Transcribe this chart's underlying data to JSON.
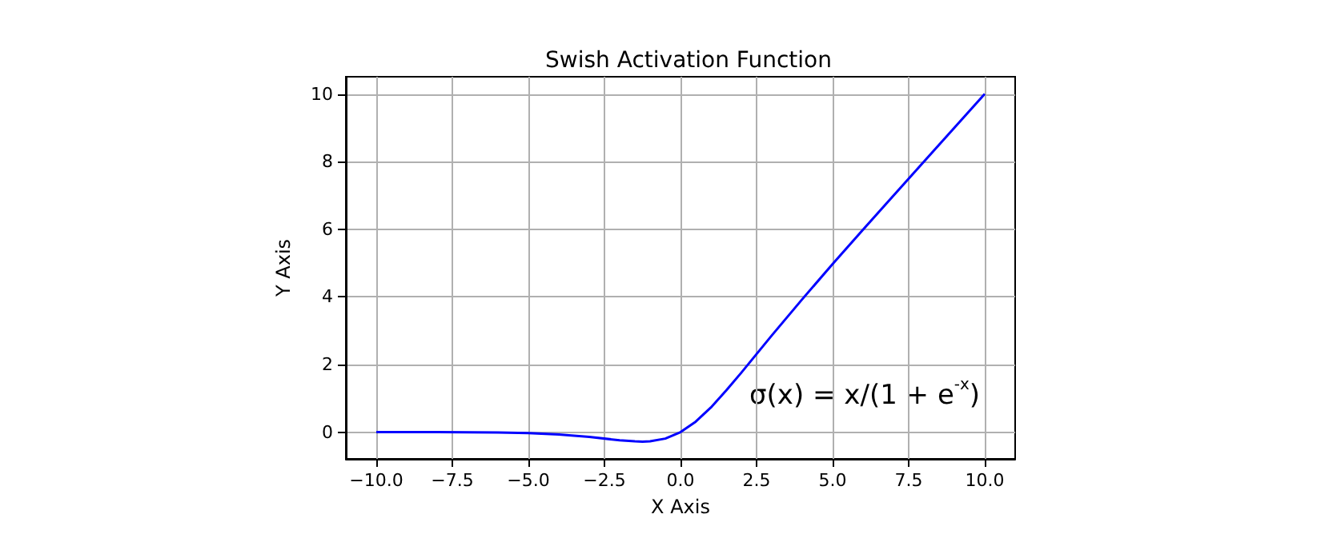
{
  "chart_data": {
    "type": "line",
    "title": "Swish Activation Function",
    "xlabel": "X Axis",
    "ylabel": "Y Axis",
    "x": [
      -10,
      -8,
      -6,
      -5,
      -4,
      -3,
      -2,
      -1.5,
      -1.25,
      -1,
      -0.5,
      0,
      0.5,
      1,
      1.5,
      2,
      3,
      4,
      5,
      6,
      8,
      10
    ],
    "series": [
      {
        "color": "#0000ff",
        "values": [
          0,
          0,
          -0.01,
          -0.03,
          -0.07,
          -0.14,
          -0.24,
          -0.27,
          -0.28,
          -0.27,
          -0.19,
          0,
          0.31,
          0.73,
          1.23,
          1.76,
          2.86,
          3.93,
          4.97,
          5.99,
          8,
          10
        ]
      }
    ],
    "xlim": [
      -11,
      11
    ],
    "ylim": [
      -0.79,
      10.51
    ],
    "xticks": [
      {
        "value": -10,
        "label": "−10.0"
      },
      -7.5,
      {
        "value": -5,
        "label": "−5.0"
      },
      -2.5,
      {
        "value": 0,
        "label": "0.0"
      },
      2.5,
      {
        "value": 5,
        "label": "5.0"
      },
      7.5,
      {
        "value": 10,
        "label": "10.0"
      }
    ],
    "yticks": [
      0,
      2,
      4,
      6,
      8,
      10
    ],
    "annotations": [
      "σ(x) = x/(1 + e$^{-x}$)"
    ],
    "grid": true,
    "marker": "none",
    "line_style": "solid"
  }
}
